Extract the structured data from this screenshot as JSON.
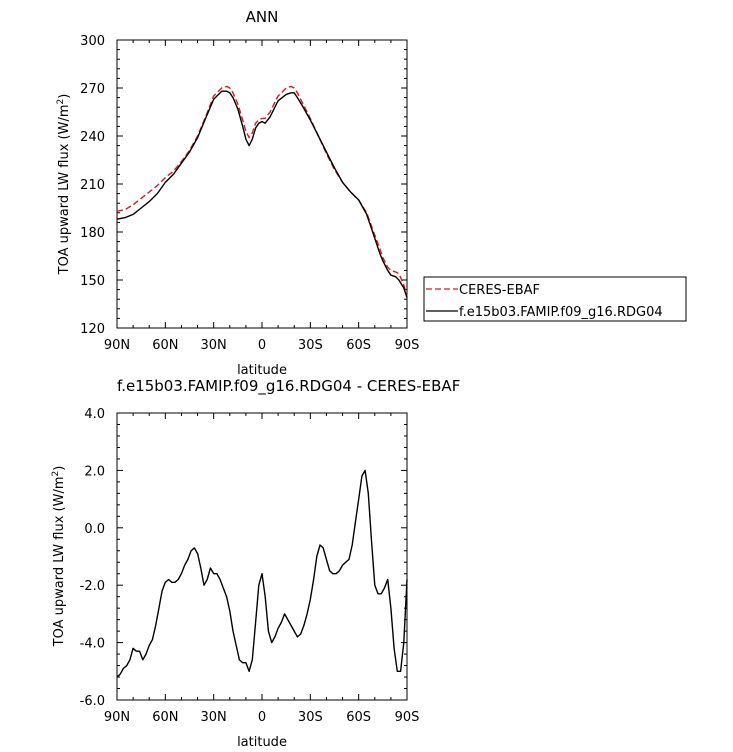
{
  "chart_data": [
    {
      "type": "line",
      "title": "ANN",
      "xlabel": "latitude",
      "ylabel": "TOA upward LW flux (W/m²)",
      "ylabel_main": "TOA upward LW flux (W/m",
      "ylabel_sup": "2",
      "ylabel_end": ")",
      "x_ticks": [
        -90,
        -60,
        -30,
        0,
        30,
        60,
        90
      ],
      "x_tick_labels": [
        "90N",
        "60N",
        "30N",
        "0",
        "30S",
        "60S",
        "90S"
      ],
      "xlim": [
        -90,
        90
      ],
      "ylim": [
        120,
        300
      ],
      "y_ticks": [
        120,
        150,
        180,
        210,
        240,
        270,
        300
      ],
      "y_tick_labels": [
        "120",
        "150",
        "180",
        "210",
        "240",
        "270",
        "300"
      ],
      "legend_position": "right",
      "series": [
        {
          "name": "CERES-EBAF",
          "color": "#e0161a",
          "dash": true,
          "x": [
            -90,
            -85,
            -80,
            -75,
            -70,
            -65,
            -60,
            -55,
            -50,
            -45,
            -40,
            -35,
            -30,
            -25,
            -22,
            -20,
            -18,
            -15,
            -12,
            -10,
            -8,
            -6,
            -4,
            -2,
            0,
            2,
            5,
            8,
            10,
            15,
            18,
            20,
            22,
            25,
            30,
            35,
            40,
            45,
            50,
            55,
            60,
            65,
            70,
            73,
            75,
            78,
            80,
            83,
            85,
            88,
            90
          ],
          "y": [
            193,
            194,
            197,
            201,
            205,
            209,
            214,
            218,
            224,
            231,
            240,
            252,
            265,
            270,
            271,
            270,
            267,
            260,
            250,
            243,
            239,
            242,
            248,
            250,
            251,
            251,
            255,
            261,
            265,
            270,
            271,
            270,
            267,
            261,
            251,
            240,
            229,
            219,
            211,
            205,
            200,
            192,
            178,
            170,
            164,
            158,
            156,
            155,
            154,
            147,
            140
          ]
        },
        {
          "name": "f.e15b03.FAMIP.f09_g16.RDG04",
          "color": "#000000",
          "dash": false,
          "x": [
            -90,
            -85,
            -80,
            -75,
            -70,
            -65,
            -60,
            -55,
            -50,
            -45,
            -40,
            -35,
            -30,
            -25,
            -22,
            -20,
            -18,
            -15,
            -12,
            -10,
            -8,
            -6,
            -4,
            -2,
            0,
            2,
            5,
            8,
            10,
            15,
            18,
            20,
            22,
            25,
            30,
            35,
            40,
            45,
            50,
            55,
            60,
            65,
            70,
            73,
            75,
            78,
            80,
            83,
            85,
            88,
            90
          ],
          "y": [
            188,
            189,
            191,
            195,
            199,
            204,
            211,
            216,
            223,
            230,
            239,
            251,
            263,
            268,
            268,
            267,
            264,
            257,
            246,
            238,
            234,
            238,
            245,
            248,
            249,
            248,
            252,
            258,
            262,
            266,
            267,
            267,
            264,
            259,
            250,
            240,
            230,
            220,
            211,
            205,
            200,
            191,
            176,
            167,
            162,
            156,
            153,
            152,
            150,
            145,
            139
          ]
        }
      ]
    },
    {
      "type": "line",
      "title": "f.e15b03.FAMIP.f09_g16.RDG04 - CERES-EBAF",
      "xlabel": "latitude",
      "ylabel": "TOA upward LW flux (W/m²)",
      "ylabel_main": "TOA upward LW flux (W/m",
      "ylabel_sup": "2",
      "ylabel_end": ")",
      "x_ticks": [
        -90,
        -60,
        -30,
        0,
        30,
        60,
        90
      ],
      "x_tick_labels": [
        "90N",
        "60N",
        "30N",
        "0",
        "30S",
        "60S",
        "90S"
      ],
      "xlim": [
        -90,
        90
      ],
      "ylim": [
        -6,
        4
      ],
      "y_ticks": [
        -6,
        -4,
        -2,
        0,
        2,
        4
      ],
      "y_tick_labels": [
        "-6.0",
        "-4.0",
        "-2.0",
        "0.0",
        "2.0",
        "4.0"
      ],
      "series": [
        {
          "color": "#000000",
          "dash": false,
          "x": [
            -90,
            -88,
            -86,
            -84,
            -82,
            -80,
            -78,
            -76,
            -74,
            -72,
            -70,
            -68,
            -66,
            -64,
            -62,
            -60,
            -58,
            -56,
            -54,
            -52,
            -50,
            -48,
            -46,
            -44,
            -42,
            -40,
            -38,
            -36,
            -34,
            -32,
            -30,
            -28,
            -26,
            -24,
            -22,
            -20,
            -18,
            -16,
            -14,
            -12,
            -10,
            -8,
            -6,
            -4,
            -2,
            0,
            2,
            4,
            6,
            8,
            10,
            12,
            14,
            16,
            18,
            20,
            22,
            24,
            26,
            28,
            30,
            32,
            34,
            36,
            38,
            40,
            42,
            44,
            46,
            48,
            50,
            52,
            54,
            56,
            58,
            60,
            62,
            64,
            66,
            68,
            70,
            72,
            74,
            76,
            78,
            80,
            82,
            84,
            86,
            88,
            90
          ],
          "y": [
            -5.2,
            -5.1,
            -4.9,
            -4.8,
            -4.6,
            -4.2,
            -4.3,
            -4.3,
            -4.6,
            -4.4,
            -4.1,
            -3.9,
            -3.4,
            -2.8,
            -2.2,
            -1.9,
            -1.8,
            -1.9,
            -1.9,
            -1.8,
            -1.6,
            -1.3,
            -1.1,
            -0.8,
            -0.7,
            -0.9,
            -1.4,
            -2.0,
            -1.8,
            -1.4,
            -1.6,
            -1.6,
            -1.8,
            -2.1,
            -2.4,
            -2.9,
            -3.6,
            -4.1,
            -4.6,
            -4.7,
            -4.7,
            -5.0,
            -4.6,
            -3.3,
            -2.0,
            -1.6,
            -2.4,
            -3.6,
            -4.0,
            -3.8,
            -3.5,
            -3.3,
            -3.0,
            -3.2,
            -3.4,
            -3.6,
            -3.8,
            -3.7,
            -3.4,
            -3.0,
            -2.5,
            -1.8,
            -1.0,
            -0.6,
            -0.7,
            -1.1,
            -1.5,
            -1.6,
            -1.6,
            -1.5,
            -1.3,
            -1.2,
            -1.1,
            -0.6,
            0.2,
            1.0,
            1.8,
            2.0,
            1.2,
            -0.5,
            -2.0,
            -2.3,
            -2.3,
            -2.1,
            -1.8,
            -2.8,
            -4.2,
            -5.0,
            -5.0,
            -4.0,
            -1.8
          ]
        }
      ]
    }
  ]
}
